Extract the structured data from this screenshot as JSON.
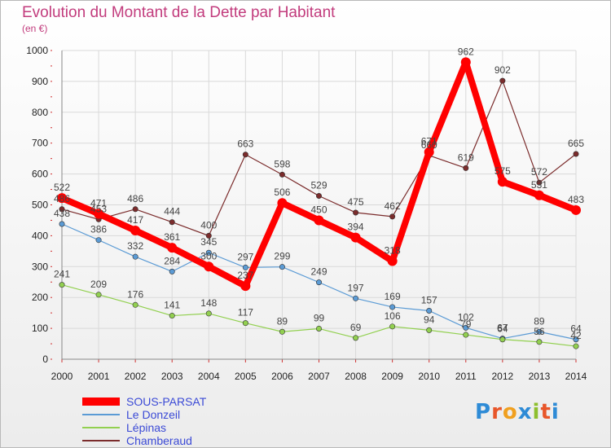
{
  "title": "Evolution du Montant de la Dette par Habitant",
  "subtitle": "(en €)",
  "logo": "Proxiti",
  "colors": {
    "title": "#c23c7d",
    "legend_text": "#3b4ad6",
    "grid": "#d9d9d9",
    "tick_mark": "#d03030",
    "value_label": "#444444"
  },
  "chart_data": {
    "type": "line",
    "title": "Evolution du Montant de la Dette par Habitant",
    "subtitle": "(en €)",
    "xlabel": "",
    "ylabel": "",
    "ylim": [
      0,
      1000
    ],
    "yticks": [
      0,
      100,
      200,
      300,
      400,
      500,
      600,
      700,
      800,
      900,
      1000
    ],
    "grid": true,
    "legend_position": "bottom-left",
    "x": [
      2000,
      2001,
      2002,
      2003,
      2004,
      2005,
      2006,
      2007,
      2008,
      2009,
      2010,
      2011,
      2012,
      2013,
      2014
    ],
    "series": [
      {
        "name": "SOUS-PARSAT",
        "color": "#ff0000",
        "values": [
          522,
          471,
          417,
          361,
          300,
          237,
          506,
          450,
          394,
          318,
          671,
          962,
          575,
          531,
          483
        ]
      },
      {
        "name": "Le Donzeil",
        "color": "#5b9bd5",
        "values": [
          438,
          386,
          332,
          284,
          345,
          297,
          299,
          249,
          197,
          169,
          157,
          102,
          67,
          89,
          64
        ]
      },
      {
        "name": "Lépinas",
        "color": "#92d050",
        "values": [
          241,
          209,
          176,
          141,
          148,
          117,
          89,
          99,
          69,
          106,
          94,
          79,
          64,
          56,
          42
        ]
      },
      {
        "name": "Chamberaud",
        "color": "#7b2c2c",
        "values": [
          486,
          453,
          486,
          444,
          400,
          663,
          598,
          529,
          475,
          462,
          660,
          619,
          902,
          572,
          665
        ]
      }
    ]
  }
}
